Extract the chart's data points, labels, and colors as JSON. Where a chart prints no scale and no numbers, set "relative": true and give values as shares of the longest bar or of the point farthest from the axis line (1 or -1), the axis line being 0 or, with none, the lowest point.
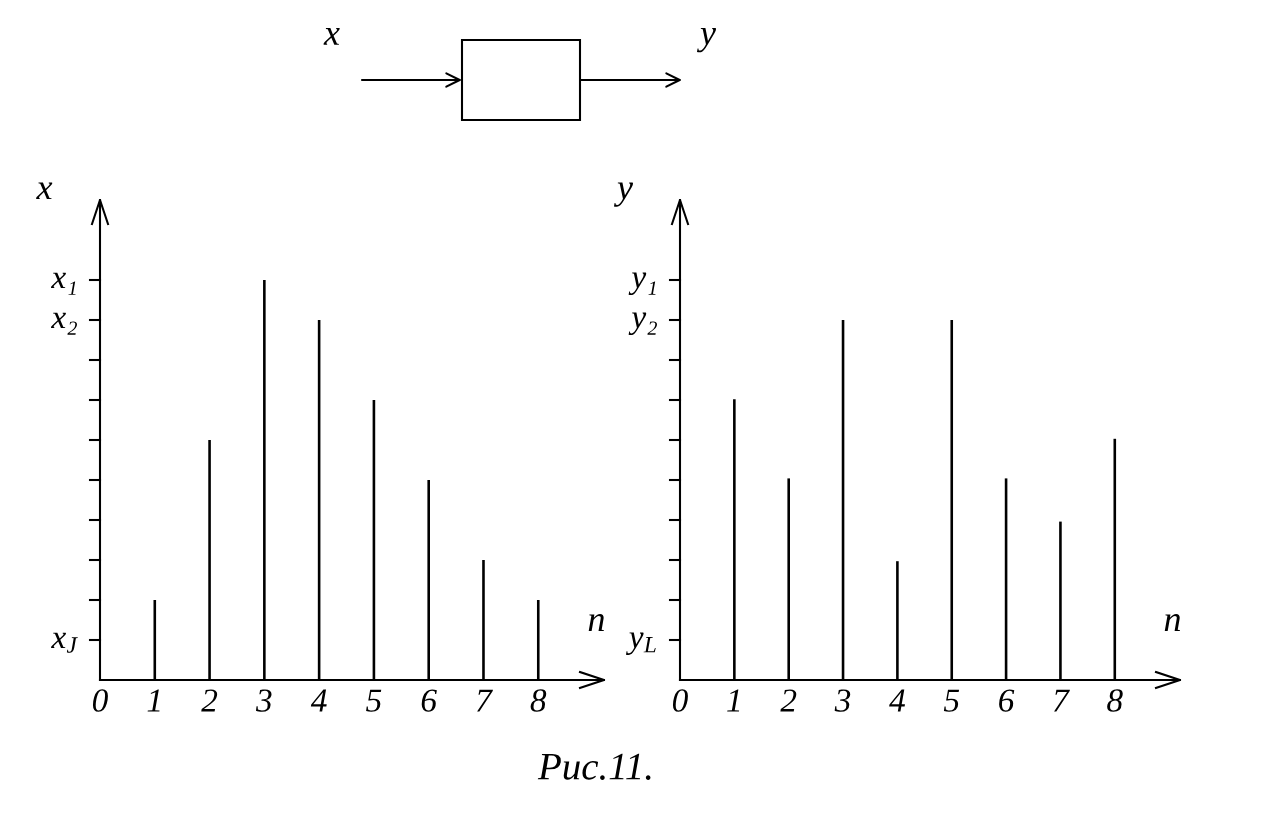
{
  "chart_data": [
    {
      "type": "other",
      "annotations": [
        "x",
        "y"
      ]
    },
    {
      "type": "bar",
      "relative": true,
      "xlabel": "n",
      "ylabel": "x",
      "x": [
        1,
        2,
        3,
        4,
        5,
        6,
        7,
        8
      ],
      "values": [
        0.2,
        0.6,
        1,
        0.9,
        0.7,
        0.5,
        0.3,
        0.2
      ],
      "color": "#000000",
      "xlim": [
        0,
        9.2
      ],
      "xticks": [
        0,
        1,
        2,
        3,
        4,
        5,
        6,
        7,
        8
      ],
      "annotations": [
        "x₁",
        "x₂",
        "x$_{J}$"
      ]
    },
    {
      "type": "bar",
      "relative": true,
      "xlabel": "n",
      "ylabel": "y",
      "x": [
        1,
        2,
        3,
        4,
        5,
        6,
        7,
        8
      ],
      "values": [
        0.78,
        0.56,
        1,
        0.33,
        1,
        0.56,
        0.44,
        0.67
      ],
      "color": "#000000",
      "xlim": [
        0,
        9.2
      ],
      "xticks": [
        0,
        1,
        2,
        3,
        4,
        5,
        6,
        7,
        8
      ],
      "annotations": [
        "y₁",
        "y₂",
        "y$_{L}$"
      ]
    },
    {
      "type": "other",
      "annotations": [
        "Рис.11."
      ]
    }
  ]
}
